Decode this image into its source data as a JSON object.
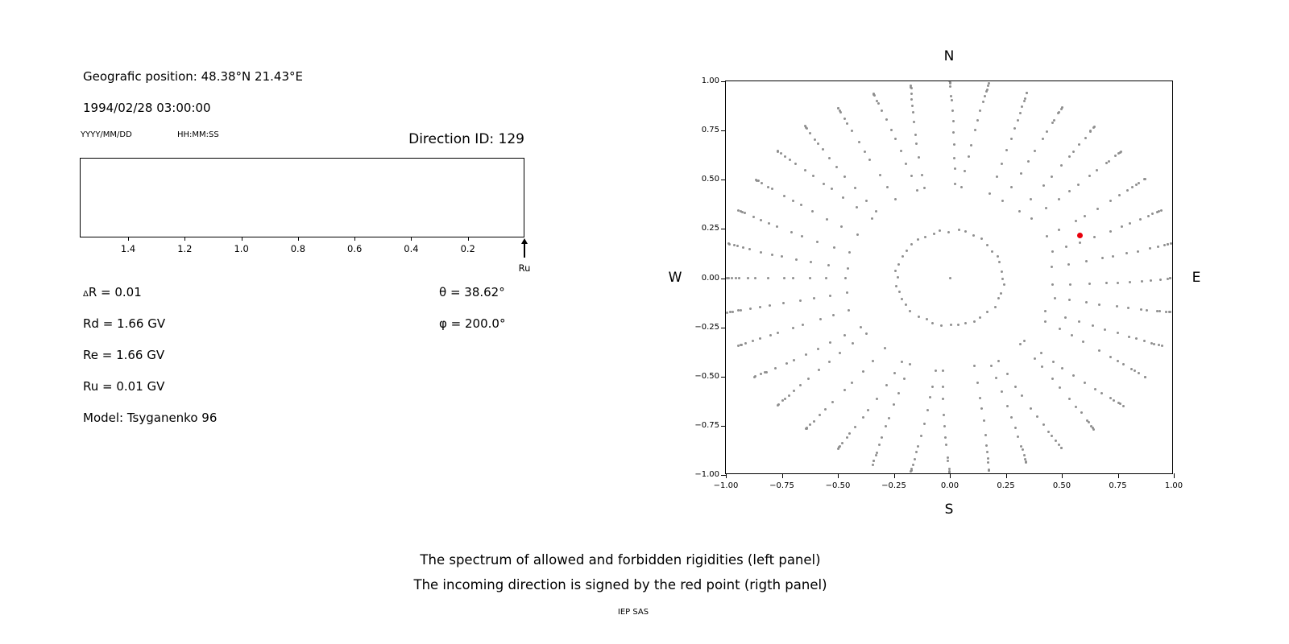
{
  "colors": {
    "background": "#ffffff",
    "text": "#000000",
    "dot": "#8f8f8f",
    "red_point": "#e8000b",
    "axis": "#000000"
  },
  "info": {
    "position": "Geografic position: 48.38°N 21.43°E",
    "datetime": "1994/02/28 03:00:00",
    "date_format": "YYYY/MM/DD",
    "time_format": "HH:MM:SS",
    "direction_id": "Direction ID: 129",
    "delta_symbol": "Δ",
    "delta_r_rest": "R = 0.01",
    "theta": "θ = 38.62°",
    "phi": "φ = 200.0°",
    "rd": "Rd = 1.66 GV",
    "re": "Re = 1.66 GV",
    "ru": "Ru = 0.01 GV",
    "model": "Model: Tsyganenko 96"
  },
  "caption": {
    "line1": "The spectrum of allowed and forbidden rigidities (left panel)",
    "line2": "The incoming direction is signed by the red point (rigth panel)",
    "credit": "IEP SAS"
  },
  "chart_data": [
    {
      "type": "line",
      "panel": "left",
      "title": "Spectrum of allowed and forbidden rigidities",
      "xlim": [
        1.571,
        0.0
      ],
      "x_reversed": true,
      "xticks": [
        1.4,
        1.2,
        1.0,
        0.8,
        0.6,
        0.4,
        0.2
      ],
      "xtick_labels": [
        "1.4",
        "1.2",
        "1.0",
        "0.8",
        "0.6",
        "0.4",
        "0.2"
      ],
      "series": [],
      "annotations": [
        {
          "type": "up-arrow",
          "x": 0.0,
          "label": "Ru"
        }
      ],
      "values": {
        "delta_R": 0.01,
        "Rd_GV": 1.66,
        "Re_GV": 1.66,
        "Ru_GV": 0.01,
        "theta_deg": 38.62,
        "phi_deg": 200.0
      }
    },
    {
      "type": "scatter",
      "panel": "right",
      "xlim": [
        -1,
        1
      ],
      "ylim": [
        -1,
        1
      ],
      "xticks": [
        -1,
        -0.75,
        -0.5,
        -0.25,
        0,
        0.25,
        0.5,
        0.75,
        1
      ],
      "xtick_labels": [
        "−1.00",
        "−0.75",
        "−0.50",
        "−0.25",
        "0.00",
        "0.25",
        "0.50",
        "0.75",
        "1.00"
      ],
      "yticks": [
        1,
        0.75,
        0.5,
        0.25,
        0,
        -0.25,
        -0.5,
        -0.75,
        -1
      ],
      "ytick_labels": [
        "1.00",
        "0.75",
        "0.50",
        "0.25",
        "0.00",
        "−0.25",
        "−0.50",
        "−0.75",
        "−1.00"
      ],
      "compass": {
        "top": "N",
        "bottom": "S",
        "left": "W",
        "right": "E"
      },
      "red_point": {
        "x": 0.58,
        "y": 0.215
      },
      "pattern": {
        "description": "Gray dots: 36 radial spokes every 10° azimuth, dot radius r = sin(zenith) for zenith 28°–90° (dots cluster toward r = 1); inner dotted circle of radius ~0.24; one dot at origin. Red dot marks the incoming direction.",
        "spokes": 36,
        "zenith_start_deg": 28,
        "zenith_end_deg": 90,
        "points_per_spoke": 13,
        "ring_radius": 0.24,
        "ring_points": 40,
        "center_dot": true
      }
    }
  ]
}
